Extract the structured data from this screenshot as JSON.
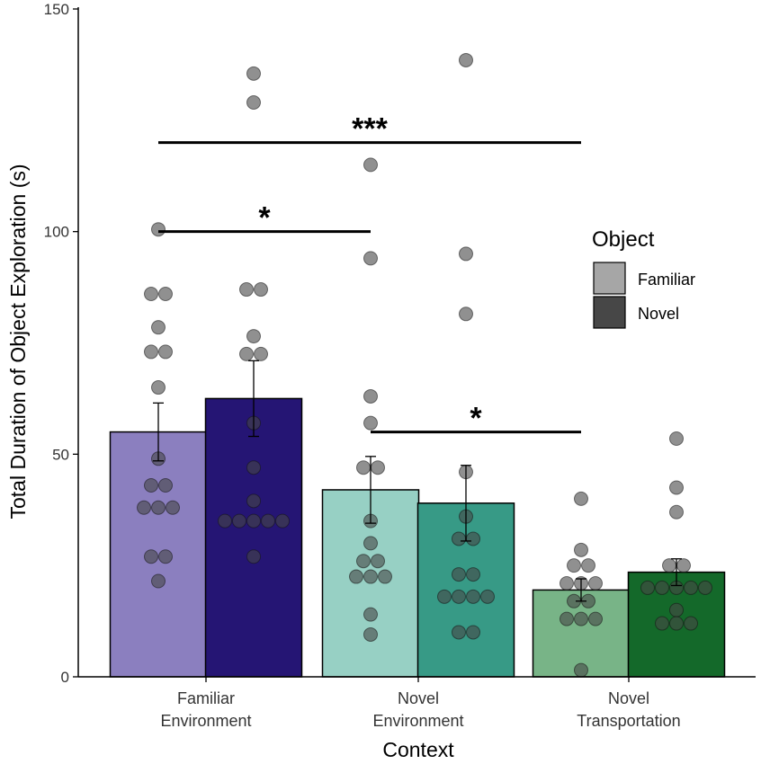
{
  "chart_data": {
    "type": "bar",
    "title": "",
    "xlabel": "Context",
    "ylabel": "Total Duration of Object Exploration (s)",
    "ylim": [
      0,
      150
    ],
    "yticks": [
      0,
      50,
      100,
      150
    ],
    "categories": [
      {
        "line1": "Familiar",
        "line2": "Environment"
      },
      {
        "line1": "Novel",
        "line2": "Environment"
      },
      {
        "line1": "Novel",
        "line2": "Transportation"
      }
    ],
    "series": [
      {
        "name": "Familiar",
        "values": [
          55,
          42,
          19.5
        ],
        "errors": [
          6.5,
          7.5,
          2.5
        ]
      },
      {
        "name": "Novel",
        "values": [
          62.5,
          39,
          23.5
        ],
        "errors": [
          8.5,
          8.5,
          3
        ]
      }
    ],
    "bar_colors": [
      [
        "#8b7fbf",
        "#251574"
      ],
      [
        "#97d0c4",
        "#379a86"
      ],
      [
        "#78b487",
        "#14692a"
      ]
    ],
    "points": [
      [
        [
          100.5,
          86,
          86,
          78.5,
          73,
          73,
          65,
          49,
          43,
          43,
          38,
          38,
          38,
          27,
          27,
          21.5
        ],
        [
          135.5,
          129,
          87,
          87,
          76.5,
          72.5,
          72.5,
          57,
          47,
          39.5,
          35,
          35,
          35,
          35,
          35,
          27
        ]
      ],
      [
        [
          115,
          94,
          63,
          57,
          47,
          47,
          35,
          30,
          26,
          26,
          22.5,
          22.5,
          22.5,
          14,
          9.5
        ],
        [
          138.5,
          95,
          81.5,
          46,
          36,
          31,
          31,
          23,
          23,
          18,
          18,
          18,
          18,
          10,
          10
        ]
      ],
      [
        [
          40,
          28.5,
          25,
          25,
          21,
          21,
          21,
          17,
          17,
          13,
          13,
          13,
          1.5
        ],
        [
          53.5,
          42.5,
          37,
          25,
          25,
          20,
          20,
          20,
          20,
          20,
          15,
          12,
          12,
          12
        ]
      ]
    ],
    "significance": [
      {
        "label": "***",
        "y": 120,
        "from": [
          0,
          0
        ],
        "to": [
          2,
          0
        ]
      },
      {
        "label": "*",
        "y": 100,
        "from": [
          0,
          0
        ],
        "to": [
          1,
          0
        ]
      },
      {
        "label": "*",
        "y": 55,
        "from": [
          1,
          0
        ],
        "to": [
          2,
          0
        ]
      }
    ],
    "legend": {
      "title": "Object",
      "position": "right",
      "items": [
        {
          "label": "Familiar",
          "color": "#a6a6a6"
        },
        {
          "label": "Novel",
          "color": "#474747"
        }
      ]
    }
  }
}
